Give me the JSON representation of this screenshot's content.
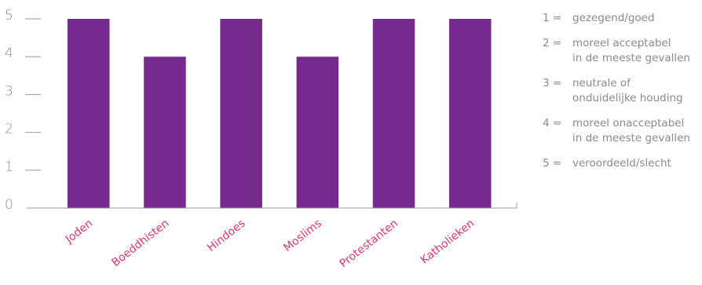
{
  "chart_data": {
    "type": "bar",
    "categories": [
      "Joden",
      "Boeddhisten",
      "Hindoes",
      "Moslims",
      "Protestanten",
      "Katholieken"
    ],
    "values": [
      5,
      4,
      5,
      4,
      5,
      5
    ],
    "ylim": [
      0,
      5
    ],
    "yticks": [
      "0",
      "1",
      "2",
      "3",
      "4",
      "5"
    ],
    "bar_color": "#762a8d",
    "category_label_color": "#e8336e",
    "grid": false,
    "legend_position": "right"
  },
  "legend": [
    {
      "num": "1 =",
      "text": "gezegend/goed"
    },
    {
      "num": "2 =",
      "text": "moreel acceptabel\nin de meeste gevallen"
    },
    {
      "num": "3 =",
      "text": "neutrale of\nonduidelijke houding"
    },
    {
      "num": "4 =",
      "text": "moreel onacceptabel\nin de meeste gevallen"
    },
    {
      "num": "5 =",
      "text": "veroordeeld/slecht"
    }
  ]
}
